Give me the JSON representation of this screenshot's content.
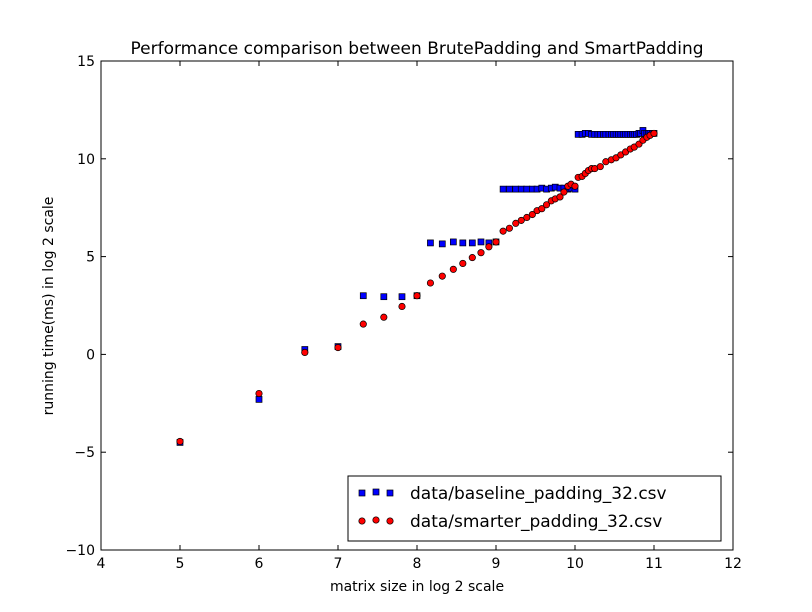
{
  "chart_data": {
    "type": "scatter",
    "title": "Performance comparison between BrutePadding and SmartPadding",
    "xlabel": "matrix size in log 2 scale",
    "ylabel": "running time(ms) in log 2 scale",
    "xlim": [
      4,
      12
    ],
    "ylim": [
      -10,
      15
    ],
    "xticks": [
      "4",
      "5",
      "6",
      "7",
      "8",
      "9",
      "10",
      "11",
      "12"
    ],
    "yticks": [
      "−10",
      "−5",
      "0",
      "5",
      "10",
      "15"
    ],
    "grid": false,
    "legend_position": "lower-right",
    "series": [
      {
        "name": "data/baseline_padding_32.csv",
        "marker": "square",
        "color": "#0000ff",
        "points": [
          [
            5.0,
            -4.5
          ],
          [
            6.0,
            -2.3
          ],
          [
            6.58,
            0.25
          ],
          [
            7.0,
            0.4
          ],
          [
            7.32,
            3.0
          ],
          [
            7.58,
            2.95
          ],
          [
            7.81,
            2.95
          ],
          [
            8.0,
            3.0
          ],
          [
            8.17,
            5.7
          ],
          [
            8.32,
            5.65
          ],
          [
            8.46,
            5.75
          ],
          [
            8.58,
            5.7
          ],
          [
            8.7,
            5.7
          ],
          [
            8.81,
            5.75
          ],
          [
            8.91,
            5.7
          ],
          [
            9.0,
            5.75
          ],
          [
            9.09,
            8.45
          ],
          [
            9.17,
            8.45
          ],
          [
            9.25,
            8.45
          ],
          [
            9.32,
            8.45
          ],
          [
            9.39,
            8.45
          ],
          [
            9.46,
            8.45
          ],
          [
            9.52,
            8.45
          ],
          [
            9.58,
            8.5
          ],
          [
            9.64,
            8.45
          ],
          [
            9.7,
            8.5
          ],
          [
            9.75,
            8.55
          ],
          [
            9.81,
            8.5
          ],
          [
            9.86,
            8.5
          ],
          [
            9.91,
            8.45
          ],
          [
            9.95,
            8.5
          ],
          [
            10.0,
            8.45
          ],
          [
            10.04,
            11.25
          ],
          [
            10.09,
            11.25
          ],
          [
            10.13,
            11.3
          ],
          [
            10.17,
            11.3
          ],
          [
            10.21,
            11.25
          ],
          [
            10.25,
            11.25
          ],
          [
            10.29,
            11.25
          ],
          [
            10.32,
            11.25
          ],
          [
            10.36,
            11.25
          ],
          [
            10.39,
            11.25
          ],
          [
            10.43,
            11.25
          ],
          [
            10.46,
            11.25
          ],
          [
            10.49,
            11.25
          ],
          [
            10.52,
            11.25
          ],
          [
            10.55,
            11.25
          ],
          [
            10.58,
            11.25
          ],
          [
            10.61,
            11.25
          ],
          [
            10.64,
            11.25
          ],
          [
            10.67,
            11.25
          ],
          [
            10.7,
            11.25
          ],
          [
            10.73,
            11.25
          ],
          [
            10.75,
            11.25
          ],
          [
            10.78,
            11.25
          ],
          [
            10.81,
            11.3
          ],
          [
            10.83,
            11.3
          ],
          [
            10.86,
            11.45
          ],
          [
            10.88,
            11.3
          ],
          [
            10.91,
            11.3
          ],
          [
            10.93,
            11.3
          ],
          [
            10.95,
            11.3
          ],
          [
            10.98,
            11.3
          ],
          [
            11.0,
            11.3
          ]
        ]
      },
      {
        "name": "data/smarter_padding_32.csv",
        "marker": "circle",
        "color": "#ff0000",
        "points": [
          [
            5.0,
            -4.45
          ],
          [
            6.0,
            -2.0
          ],
          [
            6.58,
            0.1
          ],
          [
            7.0,
            0.35
          ],
          [
            7.32,
            1.55
          ],
          [
            7.58,
            1.9
          ],
          [
            7.81,
            2.45
          ],
          [
            8.0,
            3.0
          ],
          [
            8.17,
            3.65
          ],
          [
            8.32,
            4.0
          ],
          [
            8.46,
            4.35
          ],
          [
            8.58,
            4.65
          ],
          [
            8.7,
            4.95
          ],
          [
            8.81,
            5.2
          ],
          [
            8.91,
            5.5
          ],
          [
            9.0,
            5.75
          ],
          [
            9.09,
            6.3
          ],
          [
            9.17,
            6.45
          ],
          [
            9.25,
            6.7
          ],
          [
            9.32,
            6.85
          ],
          [
            9.39,
            7.0
          ],
          [
            9.46,
            7.15
          ],
          [
            9.52,
            7.35
          ],
          [
            9.58,
            7.45
          ],
          [
            9.64,
            7.65
          ],
          [
            9.7,
            7.85
          ],
          [
            9.75,
            7.95
          ],
          [
            9.81,
            8.05
          ],
          [
            9.86,
            8.3
          ],
          [
            9.91,
            8.6
          ],
          [
            9.95,
            8.7
          ],
          [
            10.0,
            8.6
          ],
          [
            10.04,
            9.05
          ],
          [
            10.09,
            9.1
          ],
          [
            10.13,
            9.25
          ],
          [
            10.17,
            9.4
          ],
          [
            10.21,
            9.5
          ],
          [
            10.25,
            9.5
          ],
          [
            10.32,
            9.6
          ],
          [
            10.39,
            9.85
          ],
          [
            10.46,
            9.95
          ],
          [
            10.52,
            10.05
          ],
          [
            10.58,
            10.2
          ],
          [
            10.64,
            10.35
          ],
          [
            10.7,
            10.5
          ],
          [
            10.75,
            10.6
          ],
          [
            10.81,
            10.75
          ],
          [
            10.86,
            10.95
          ],
          [
            10.91,
            11.1
          ],
          [
            10.95,
            11.2
          ],
          [
            11.0,
            11.3
          ]
        ]
      }
    ]
  }
}
